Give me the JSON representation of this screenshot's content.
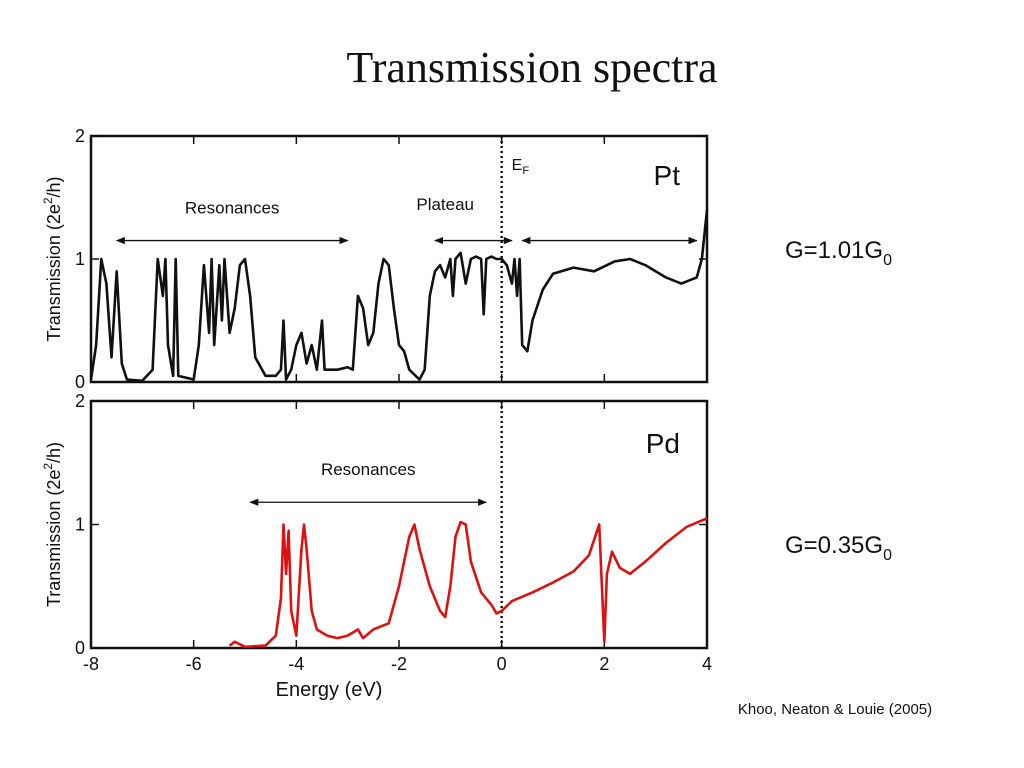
{
  "title": "Transmission spectra",
  "citation": "Khoo, Neaton & Louie (2005)",
  "chart_data": [
    {
      "type": "line",
      "label": "Pt",
      "label_color": "#111111",
      "ylabel": "Transmission (2e",
      "ylabel_sup": "2",
      "ylabel_end": "/h)",
      "note": "G=1.01G",
      "note_sub": "0",
      "fermi_label": "E",
      "fermi_sub": "F",
      "fermi_energy": 0,
      "annotations": [
        "Resonances",
        "Plateau"
      ],
      "xlim": [
        -8,
        4
      ],
      "xticks": [
        -8,
        -6,
        -4,
        -2,
        0,
        2,
        4
      ],
      "ylim": [
        0,
        2
      ],
      "yticks": [
        0,
        1,
        2
      ],
      "series": [
        {
          "name": "Pt",
          "color": "#111111",
          "x": [
            -8.0,
            -7.9,
            -7.8,
            -7.7,
            -7.6,
            -7.5,
            -7.4,
            -7.3,
            -7.0,
            -6.8,
            -6.7,
            -6.6,
            -6.55,
            -6.5,
            -6.4,
            -6.35,
            -6.3,
            -6.0,
            -5.9,
            -5.8,
            -5.7,
            -5.65,
            -5.6,
            -5.5,
            -5.45,
            -5.4,
            -5.3,
            -5.2,
            -5.1,
            -5.0,
            -4.9,
            -4.8,
            -4.6,
            -4.4,
            -4.3,
            -4.25,
            -4.2,
            -4.1,
            -4.0,
            -3.9,
            -3.8,
            -3.7,
            -3.6,
            -3.5,
            -3.45,
            -3.2,
            -3.0,
            -2.9,
            -2.8,
            -2.7,
            -2.6,
            -2.5,
            -2.4,
            -2.3,
            -2.2,
            -2.1,
            -2.0,
            -1.9,
            -1.8,
            -1.6,
            -1.5,
            -1.4,
            -1.3,
            -1.2,
            -1.1,
            -1.0,
            -0.95,
            -0.9,
            -0.8,
            -0.7,
            -0.6,
            -0.5,
            -0.4,
            -0.35,
            -0.3,
            -0.2,
            -0.1,
            0.0,
            0.1,
            0.2,
            0.25,
            0.3,
            0.35,
            0.4,
            0.5,
            0.6,
            0.8,
            1.0,
            1.4,
            1.8,
            2.2,
            2.5,
            2.8,
            3.2,
            3.5,
            3.8,
            3.9,
            4.0
          ],
          "values": [
            0.02,
            0.3,
            1.0,
            0.8,
            0.2,
            0.9,
            0.15,
            0.02,
            0.01,
            0.1,
            1.0,
            0.7,
            1.0,
            0.3,
            0.05,
            1.0,
            0.05,
            0.02,
            0.3,
            0.95,
            0.4,
            1.0,
            0.3,
            0.95,
            0.5,
            1.0,
            0.4,
            0.6,
            0.95,
            1.0,
            0.7,
            0.2,
            0.05,
            0.05,
            0.1,
            0.5,
            0.02,
            0.1,
            0.3,
            0.4,
            0.15,
            0.3,
            0.1,
            0.5,
            0.1,
            0.1,
            0.12,
            0.1,
            0.7,
            0.6,
            0.3,
            0.4,
            0.8,
            1.0,
            0.95,
            0.6,
            0.3,
            0.25,
            0.1,
            0.02,
            0.1,
            0.7,
            0.9,
            0.95,
            0.85,
            1.0,
            0.7,
            1.0,
            1.05,
            0.8,
            1.0,
            1.02,
            1.0,
            0.55,
            1.0,
            1.02,
            1.0,
            1.0,
            0.95,
            0.8,
            1.0,
            0.7,
            1.0,
            0.3,
            0.25,
            0.5,
            0.75,
            0.88,
            0.93,
            0.9,
            0.98,
            1.0,
            0.95,
            0.85,
            0.8,
            0.85,
            1.0,
            1.4
          ]
        }
      ]
    },
    {
      "type": "line",
      "label": "Pd",
      "label_color": "#dd0000",
      "ylabel": "Transmission (2e",
      "ylabel_sup": "2",
      "ylabel_end": "/h)",
      "note": "G=0.35G",
      "note_sub": "0",
      "fermi_energy": 0,
      "annotations": [
        "Resonances"
      ],
      "xlabel": "Energy (eV)",
      "xlim": [
        -8,
        4
      ],
      "xticks": [
        -8,
        -6,
        -4,
        -2,
        0,
        2,
        4
      ],
      "ylim": [
        0,
        2
      ],
      "yticks": [
        0,
        1,
        2
      ],
      "series": [
        {
          "name": "Pd",
          "color": "#dd1111",
          "x": [
            -5.3,
            -5.2,
            -5.0,
            -4.6,
            -4.4,
            -4.3,
            -4.25,
            -4.2,
            -4.15,
            -4.1,
            -4.0,
            -3.9,
            -3.85,
            -3.8,
            -3.7,
            -3.6,
            -3.4,
            -3.2,
            -3.0,
            -2.8,
            -2.7,
            -2.5,
            -2.2,
            -2.0,
            -1.8,
            -1.7,
            -1.6,
            -1.4,
            -1.2,
            -1.1,
            -1.0,
            -0.9,
            -0.8,
            -0.7,
            -0.6,
            -0.4,
            -0.2,
            -0.1,
            0.0,
            0.2,
            0.6,
            1.0,
            1.4,
            1.7,
            1.9,
            2.0,
            2.05,
            2.15,
            2.3,
            2.5,
            2.8,
            3.2,
            3.6,
            4.0
          ],
          "values": [
            0.02,
            0.05,
            0.01,
            0.02,
            0.1,
            0.4,
            1.0,
            0.6,
            0.95,
            0.3,
            0.1,
            0.8,
            1.0,
            0.8,
            0.3,
            0.15,
            0.1,
            0.08,
            0.1,
            0.15,
            0.08,
            0.15,
            0.2,
            0.5,
            0.9,
            1.0,
            0.8,
            0.5,
            0.3,
            0.25,
            0.5,
            0.9,
            1.02,
            1.0,
            0.7,
            0.45,
            0.35,
            0.28,
            0.3,
            0.38,
            0.45,
            0.53,
            0.62,
            0.75,
            1.0,
            0.05,
            0.6,
            0.78,
            0.65,
            0.6,
            0.7,
            0.85,
            0.98,
            1.05
          ]
        }
      ]
    }
  ]
}
